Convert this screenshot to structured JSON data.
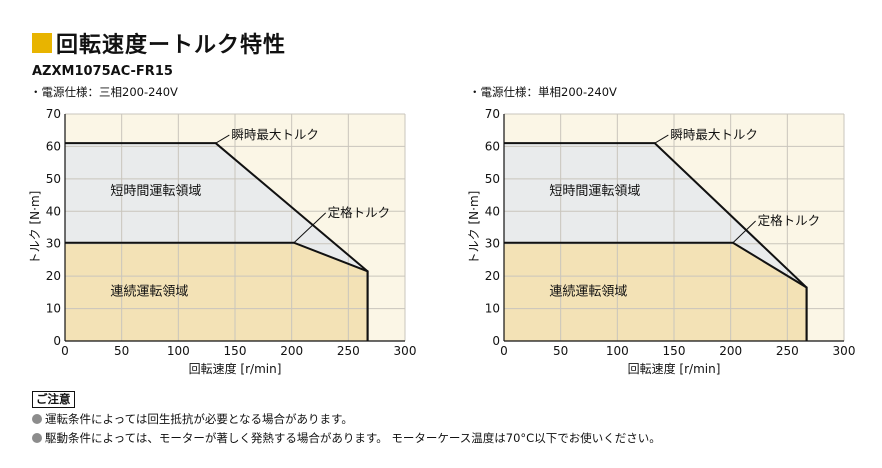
{
  "header": {
    "title": "回転速度ートルク特性",
    "model": "AZXM1075AC-FR15",
    "accent_color": "#e8b400"
  },
  "chart_data": [
    {
      "type": "area",
      "supply_label": "・電源仕様：三相200-240V",
      "xlabel": "回転速度 [r/min]",
      "ylabel": "トルク [N·m]",
      "xlim": [
        0,
        300
      ],
      "ylim": [
        0,
        70
      ],
      "x_ticks": [
        "0",
        "50",
        "100",
        "150",
        "200",
        "250",
        "300"
      ],
      "y_ticks": [
        "0",
        "10",
        "20",
        "30",
        "40",
        "50",
        "60",
        "70"
      ],
      "grid": true,
      "series": [
        {
          "name": "瞬時最大トルク",
          "points": [
            [
              0,
              61
            ],
            [
              133,
              61
            ],
            [
              267,
              21.5
            ],
            [
              267,
              0
            ]
          ]
        },
        {
          "name": "定格トルク",
          "points": [
            [
              0,
              30.3
            ],
            [
              202,
              30.3
            ],
            [
              267,
              21.5
            ],
            [
              267,
              0
            ]
          ]
        }
      ],
      "regions": [
        {
          "label": "短時間運転領域",
          "at": [
            40,
            45
          ]
        },
        {
          "label": "連続運転領域",
          "at": [
            40,
            14
          ]
        }
      ],
      "annotations": [
        {
          "text": "瞬時最大トルク",
          "target": [
            133,
            61
          ],
          "text_at": [
            145,
            63.5
          ]
        },
        {
          "text": "定格トルク",
          "target": [
            202,
            30.3
          ],
          "text_at": [
            230,
            39.5
          ]
        }
      ]
    },
    {
      "type": "area",
      "supply_label": "・電源仕様：単相200-240V",
      "xlabel": "回転速度 [r/min]",
      "ylabel": "トルク [N·m]",
      "xlim": [
        0,
        300
      ],
      "ylim": [
        0,
        70
      ],
      "x_ticks": [
        "0",
        "50",
        "100",
        "150",
        "200",
        "250",
        "300"
      ],
      "y_ticks": [
        "0",
        "10",
        "20",
        "30",
        "40",
        "50",
        "60",
        "70"
      ],
      "grid": true,
      "series": [
        {
          "name": "瞬時最大トルク",
          "points": [
            [
              0,
              61
            ],
            [
              133,
              61
            ],
            [
              267,
              16.5
            ],
            [
              267,
              0
            ]
          ]
        },
        {
          "name": "定格トルク",
          "points": [
            [
              0,
              30.3
            ],
            [
              202,
              30.3
            ],
            [
              267,
              16.5
            ],
            [
              267,
              0
            ]
          ]
        }
      ],
      "regions": [
        {
          "label": "短時間運転領域",
          "at": [
            40,
            45
          ]
        },
        {
          "label": "連続運転領域",
          "at": [
            40,
            14
          ]
        }
      ],
      "annotations": [
        {
          "text": "瞬時最大トルク",
          "target": [
            133,
            61
          ],
          "text_at": [
            145,
            63.5
          ]
        },
        {
          "text": "定格トルク",
          "target": [
            202,
            30.3
          ],
          "text_at": [
            222,
            37
          ]
        }
      ]
    }
  ],
  "colors": {
    "plot_bg": "#fbf6e6",
    "short_time_fill": "#e9ebec",
    "continuous_fill": "#f3e2b6",
    "grid": "#c9c5bc",
    "line": "#111111"
  },
  "notes": {
    "heading": "ご注意",
    "bullet_color": "#8c8c8c",
    "items": [
      "運転条件によっては回生抵抗が必要となる場合があります。",
      "駆動条件によっては、モーターが著しく発熱する場合があります。 モーターケース温度は70°C以下でお使いください。"
    ]
  }
}
